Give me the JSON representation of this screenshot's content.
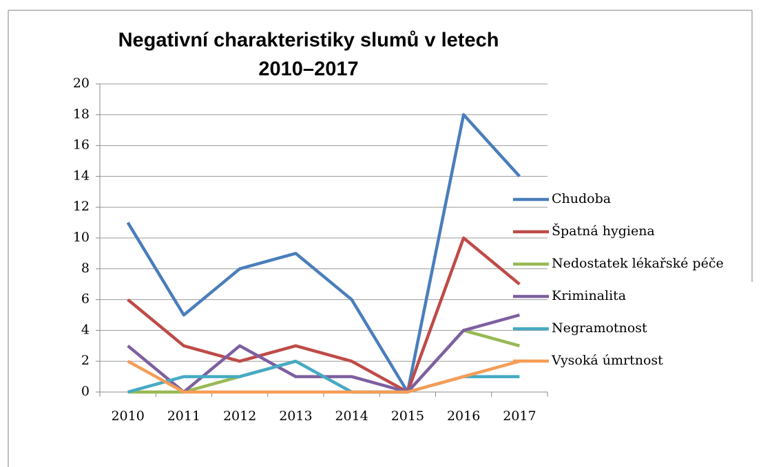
{
  "chart_data": {
    "type": "line",
    "title": [
      "Negativní charakteristiky slumů v letech",
      "2010–2017"
    ],
    "categories": [
      "2010",
      "2011",
      "2012",
      "2013",
      "2014",
      "2015",
      "2016",
      "2017"
    ],
    "series": [
      {
        "name": "Chudoba",
        "color": "#4a7ebb",
        "values": [
          11,
          5,
          8,
          9,
          6,
          0,
          18,
          14
        ]
      },
      {
        "name": "Špatná hygiena",
        "color": "#be4b48",
        "values": [
          6,
          3,
          2,
          3,
          2,
          0,
          10,
          7
        ]
      },
      {
        "name": "Nedostatek lékařské péče",
        "color": "#98b954",
        "values": [
          0,
          0,
          1,
          2,
          0,
          0,
          4,
          3
        ]
      },
      {
        "name": "Kriminalita",
        "color": "#7d60a0",
        "values": [
          3,
          0,
          3,
          1,
          1,
          0,
          4,
          5
        ]
      },
      {
        "name": "Negramotnost",
        "color": "#46aac5",
        "values": [
          0,
          1,
          1,
          2,
          0,
          0,
          1,
          1
        ]
      },
      {
        "name": "Vysoká úmrtnost",
        "color": "#f59d56",
        "values": [
          2,
          0,
          0,
          0,
          0,
          0,
          1,
          2
        ]
      }
    ],
    "ylim": [
      0,
      20
    ],
    "yticks": [
      0,
      2,
      4,
      6,
      8,
      10,
      12,
      14,
      16,
      18,
      20
    ],
    "grid": true,
    "legend": "right"
  }
}
